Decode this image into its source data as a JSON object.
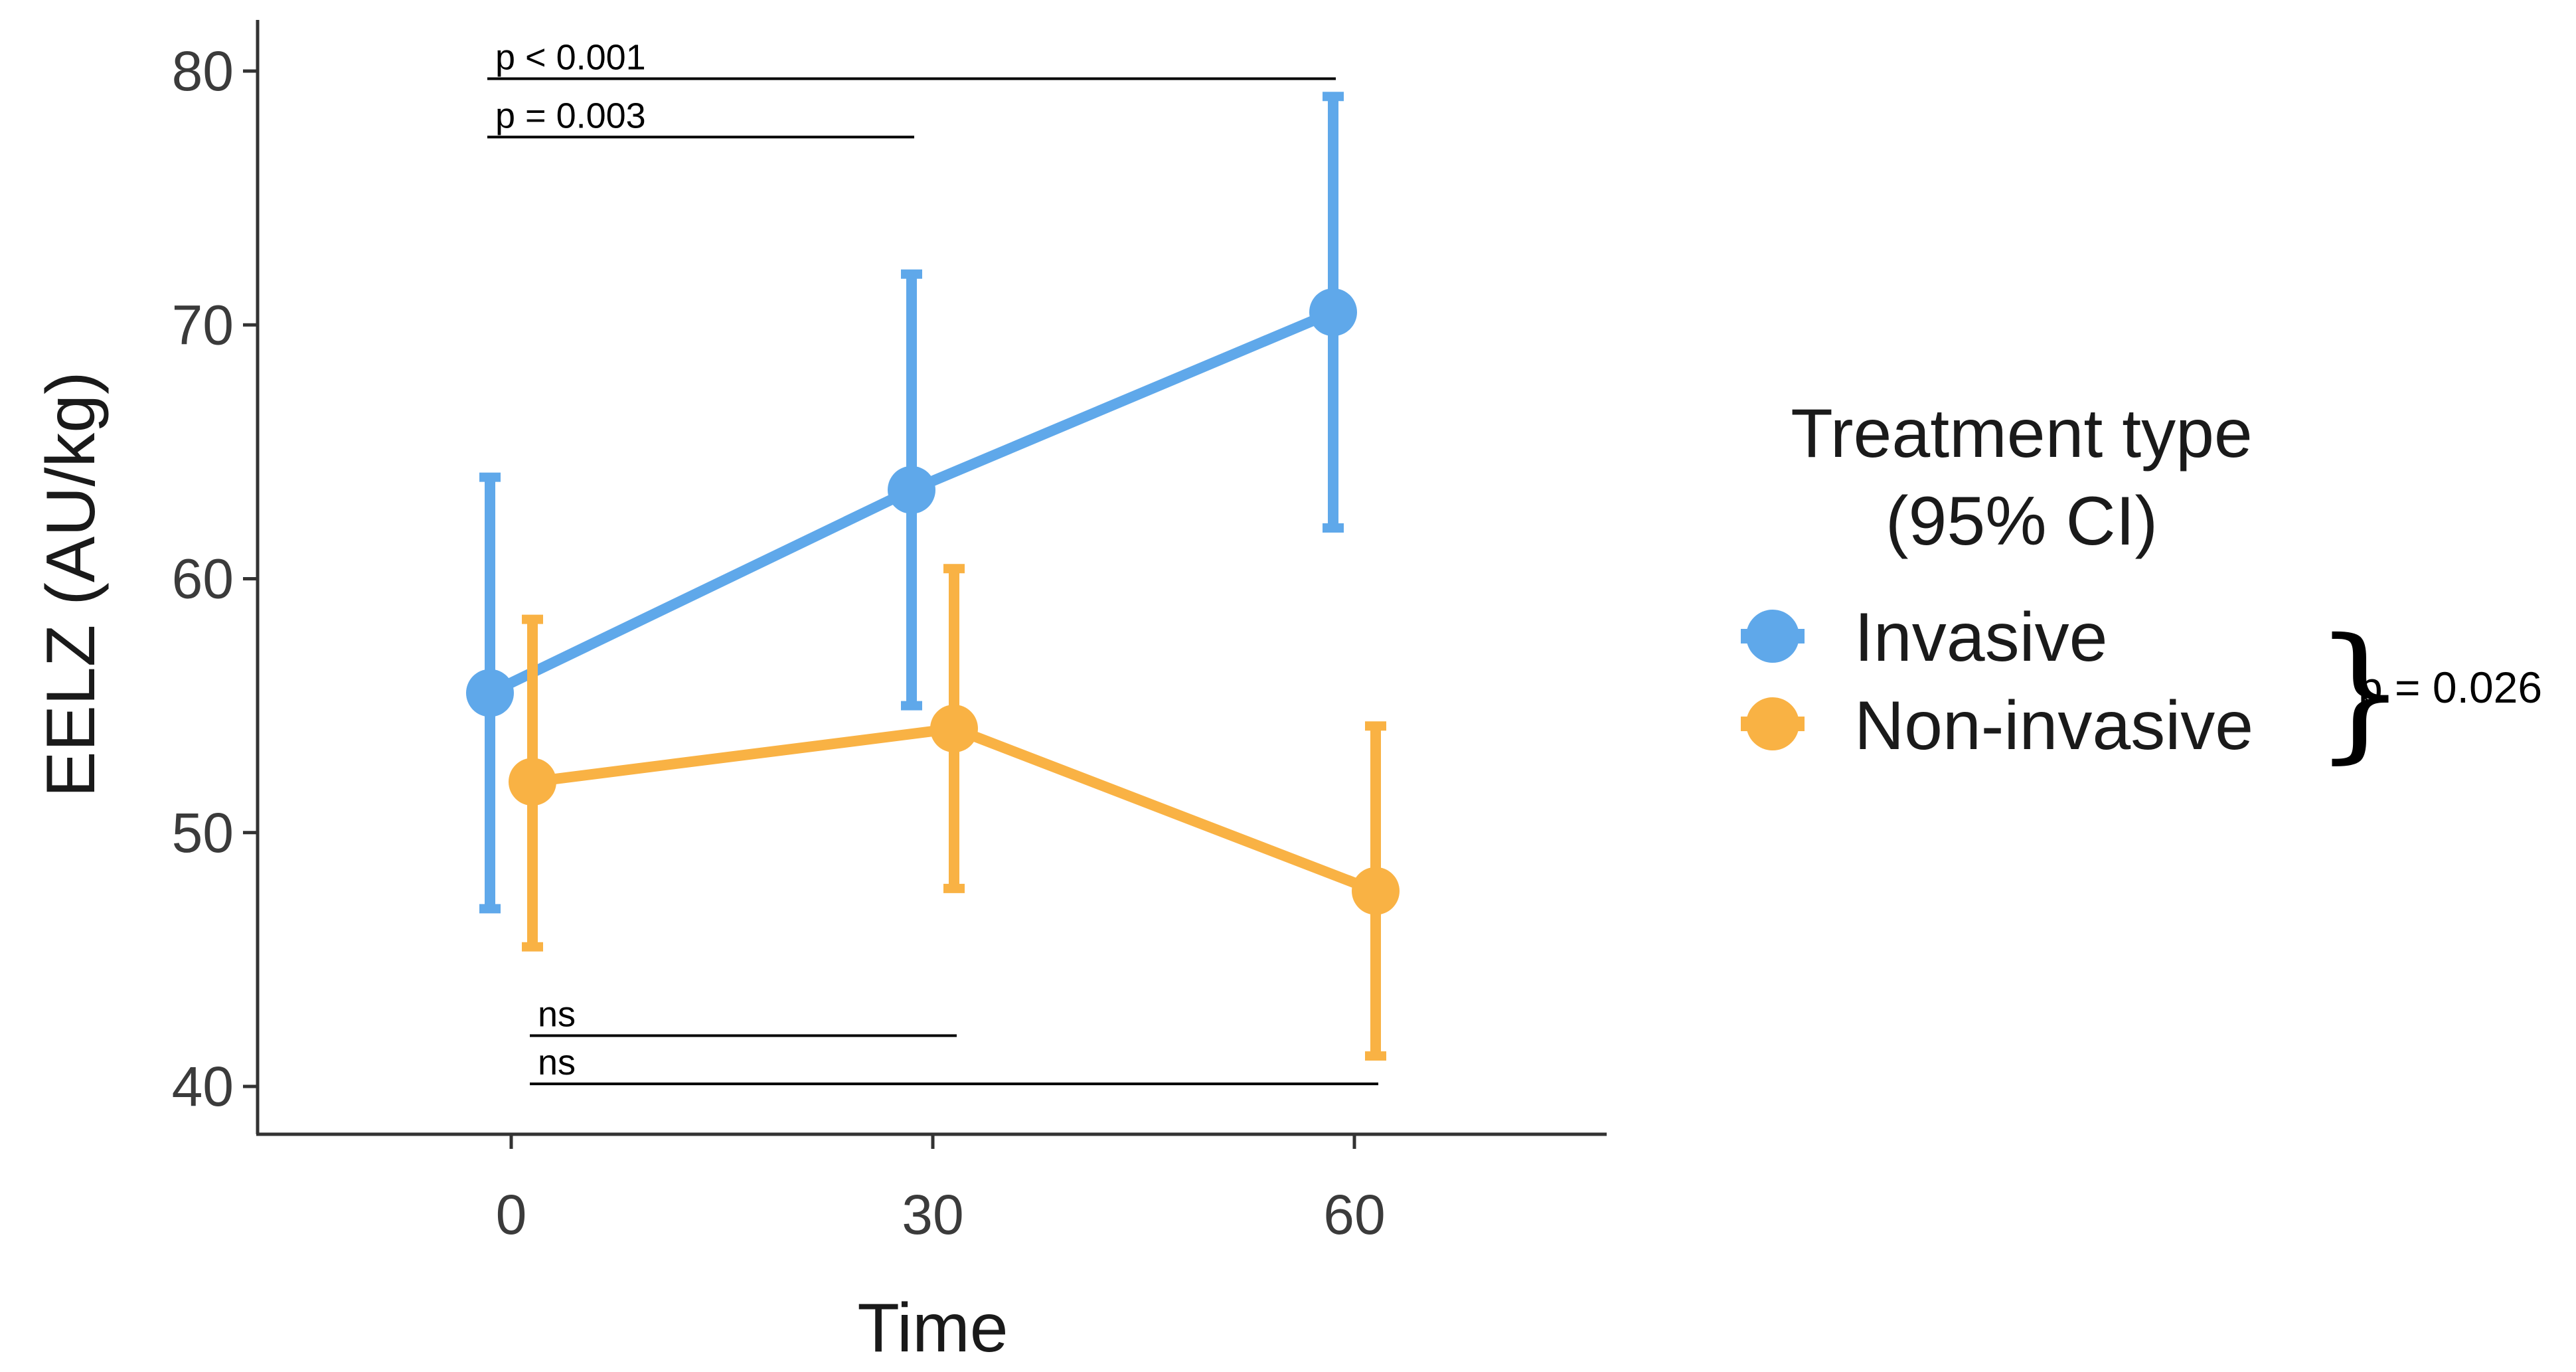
{
  "chart_data": {
    "type": "line",
    "title": "",
    "xlabel": "Time",
    "ylabel": "EELZ (AU/kg)",
    "x": [
      0,
      30,
      60
    ],
    "xticks": [
      "0",
      "30",
      "60"
    ],
    "yticks": [
      "40",
      "50",
      "60",
      "70",
      "80"
    ],
    "xlim": [
      -18,
      78
    ],
    "ylim": [
      38,
      82
    ],
    "grid": false,
    "legend": {
      "title_line1": "Treatment type",
      "title_line2": "(95% CI)",
      "position": "right"
    },
    "series": [
      {
        "name": "Invasive",
        "color": "#5fa8ea",
        "mean": [
          55.5,
          63.5,
          70.5
        ],
        "ci_low": [
          47.0,
          55.0,
          62.0
        ],
        "ci_high": [
          64.0,
          72.0,
          79.0
        ]
      },
      {
        "name": "Non-invasive",
        "color": "#f9b244",
        "mean": [
          52.0,
          54.1,
          47.7
        ],
        "ci_low": [
          45.5,
          47.8,
          41.2
        ],
        "ci_high": [
          58.4,
          60.4,
          54.2
        ]
      }
    ],
    "comparisons": [
      {
        "series": "Invasive",
        "from": 0,
        "to": 60,
        "label": "p < 0.001",
        "y": 79.7
      },
      {
        "series": "Invasive",
        "from": 0,
        "to": 30,
        "label": "p = 0.003",
        "y": 77.4
      },
      {
        "series": "Non-invasive",
        "from": 0,
        "to": 30,
        "label": "ns",
        "y": 42.0
      },
      {
        "series": "Non-invasive",
        "from": 0,
        "to": 60,
        "label": "ns",
        "y": 40.1
      }
    ],
    "group_test": {
      "label": "p = 0.026",
      "brace": "}"
    }
  }
}
